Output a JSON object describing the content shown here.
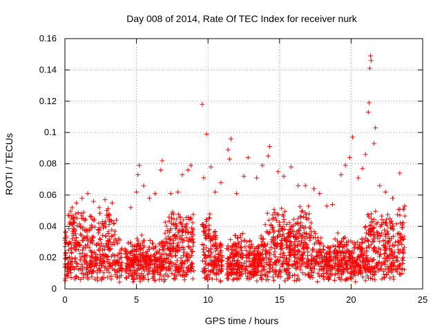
{
  "chart_data": {
    "type": "scatter",
    "title": "Day 008 of 2014, Rate Of TEC Index for receiver nurk",
    "xlabel": "GPS time / hours",
    "ylabel": "ROTI / TECUs",
    "xlim": [
      0,
      25
    ],
    "ylim": [
      0,
      0.16
    ],
    "xticks": [
      0,
      5,
      10,
      15,
      20,
      25
    ],
    "xtick_labels": [
      "0",
      "5",
      "10",
      "15",
      "20",
      "25"
    ],
    "yticks": [
      0,
      0.02,
      0.04,
      0.06,
      0.08,
      0.1,
      0.12,
      0.14,
      0.16
    ],
    "ytick_labels": [
      "0",
      "0.02",
      "0.04",
      "0.06",
      "0.08",
      "0.1",
      "0.12",
      "0.14",
      "0.16"
    ],
    "grid": true,
    "marker": "+",
    "color": "#ff0000",
    "data_gaps_hours": [
      [
        4.0,
        4.2
      ],
      [
        9.0,
        9.6
      ],
      [
        11.0,
        11.3
      ]
    ],
    "series": [
      {
        "name": "ROTI",
        "points": [
          [
            0.05,
            0.036
          ],
          [
            0.3,
            0.047
          ],
          [
            0.5,
            0.052
          ],
          [
            0.8,
            0.055
          ],
          [
            1.2,
            0.058
          ],
          [
            1.6,
            0.061
          ],
          [
            2.0,
            0.056
          ],
          [
            2.4,
            0.052
          ],
          [
            2.8,
            0.057
          ],
          [
            3.3,
            0.055
          ],
          [
            3.6,
            0.044
          ],
          [
            4.6,
            0.052
          ],
          [
            5.0,
            0.062
          ],
          [
            5.1,
            0.073
          ],
          [
            5.2,
            0.079
          ],
          [
            5.5,
            0.066
          ],
          [
            5.9,
            0.058
          ],
          [
            6.3,
            0.061
          ],
          [
            6.7,
            0.076
          ],
          [
            6.8,
            0.082
          ],
          [
            7.4,
            0.061
          ],
          [
            7.9,
            0.062
          ],
          [
            8.2,
            0.073
          ],
          [
            8.6,
            0.076
          ],
          [
            8.8,
            0.079
          ],
          [
            9.6,
            0.118
          ],
          [
            9.7,
            0.071
          ],
          [
            9.9,
            0.099
          ],
          [
            10.2,
            0.078
          ],
          [
            10.5,
            0.062
          ],
          [
            10.9,
            0.068
          ],
          [
            11.4,
            0.089
          ],
          [
            11.6,
            0.096
          ],
          [
            11.5,
            0.083
          ],
          [
            12.0,
            0.061
          ],
          [
            12.5,
            0.072
          ],
          [
            12.8,
            0.084
          ],
          [
            13.4,
            0.071
          ],
          [
            13.8,
            0.079
          ],
          [
            14.2,
            0.085
          ],
          [
            14.3,
            0.091
          ],
          [
            14.9,
            0.075
          ],
          [
            15.3,
            0.072
          ],
          [
            15.8,
            0.078
          ],
          [
            16.3,
            0.066
          ],
          [
            16.8,
            0.066
          ],
          [
            17.4,
            0.064
          ],
          [
            17.8,
            0.061
          ],
          [
            18.3,
            0.053
          ],
          [
            18.7,
            0.054
          ],
          [
            19.3,
            0.073
          ],
          [
            19.6,
            0.079
          ],
          [
            19.9,
            0.084
          ],
          [
            20.1,
            0.097
          ],
          [
            20.5,
            0.071
          ],
          [
            20.8,
            0.077
          ],
          [
            21.0,
            0.086
          ],
          [
            21.2,
            0.113
          ],
          [
            21.25,
            0.119
          ],
          [
            21.3,
            0.141
          ],
          [
            21.35,
            0.149
          ],
          [
            21.4,
            0.146
          ],
          [
            21.6,
            0.093
          ],
          [
            21.7,
            0.103
          ],
          [
            22.0,
            0.066
          ],
          [
            22.4,
            0.062
          ],
          [
            22.9,
            0.058
          ],
          [
            23.4,
            0.074
          ],
          [
            23.7,
            0.051
          ]
        ]
      }
    ]
  }
}
